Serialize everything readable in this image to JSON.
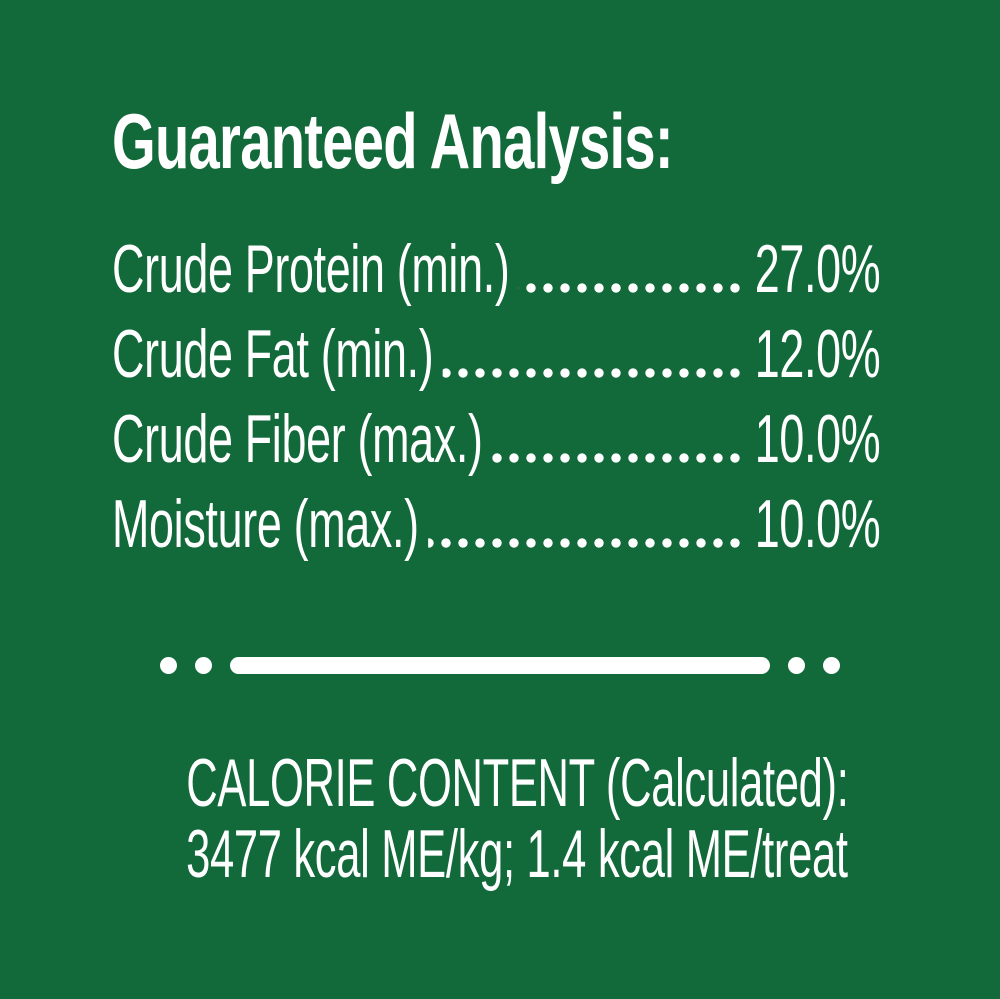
{
  "page": {
    "colors": {
      "background": "#12693a",
      "text": "#ffffff"
    }
  },
  "title": "Guaranteed Analysis:",
  "analysis_rows": [
    {
      "label": "Crude Protein (min.)",
      "value": "27.0%"
    },
    {
      "label": "Crude Fat (min.)",
      "value": "12.0%"
    },
    {
      "label": "Crude Fiber (max.)",
      "value": "10.0%"
    },
    {
      "label": "Moisture (max.)",
      "value": "10.0%"
    }
  ],
  "calorie_content": {
    "heading": "CALORIE CONTENT (Calculated):",
    "values": "3477 kcal ME/kg; 1.4 kcal ME/treat"
  }
}
